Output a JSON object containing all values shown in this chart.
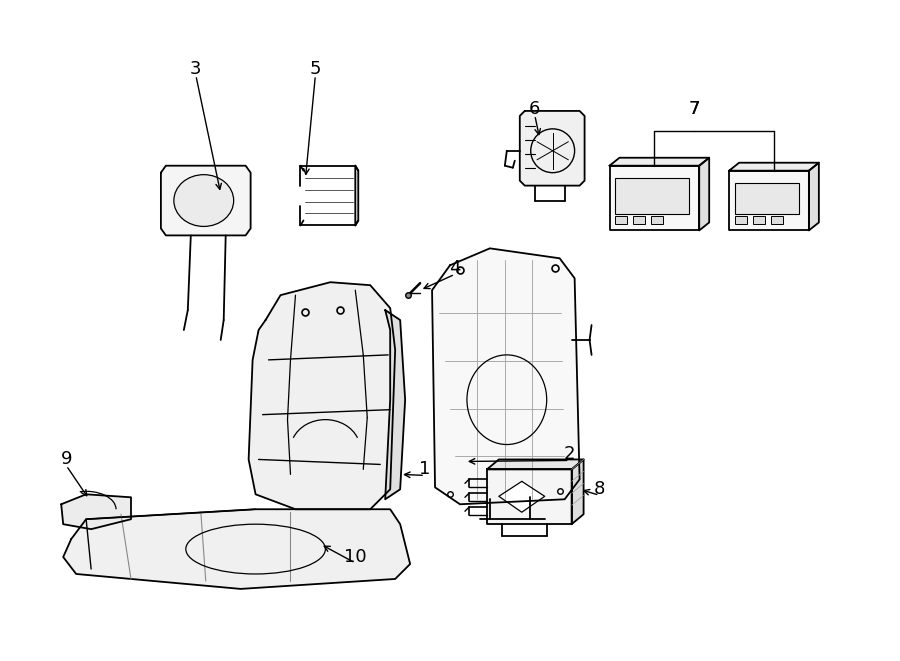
{
  "background_color": "#ffffff",
  "line_color": "#000000",
  "fig_width": 9.0,
  "fig_height": 6.61,
  "label_fontsize": 13
}
